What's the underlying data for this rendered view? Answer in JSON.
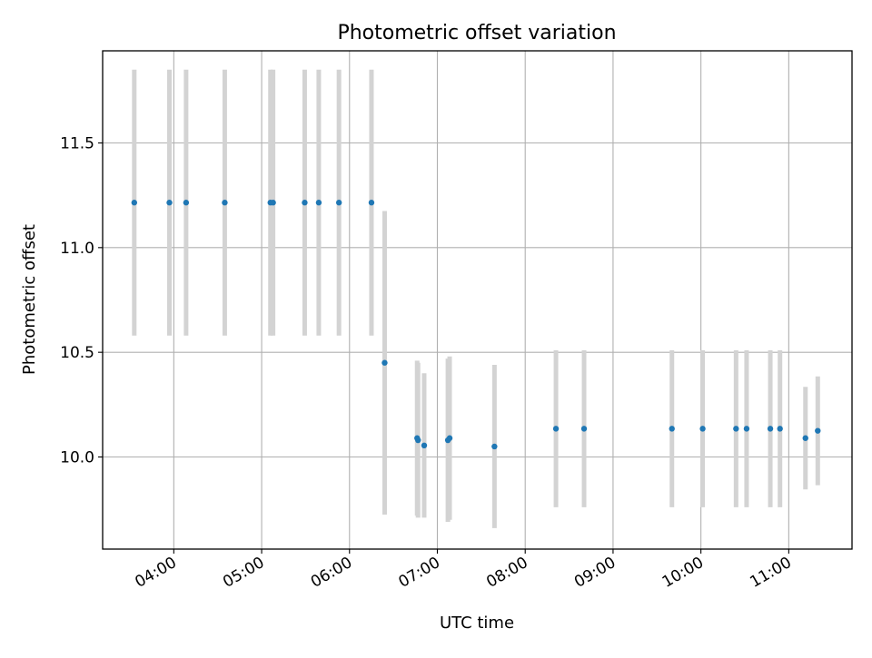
{
  "chart_data": {
    "type": "scatter",
    "title": "Photometric offset variation",
    "xlabel": "UTC time",
    "ylabel": "Photometric offset",
    "x_tick_labels": [
      "04:00",
      "05:00",
      "06:00",
      "07:00",
      "08:00",
      "09:00",
      "10:00",
      "11:00"
    ],
    "y_tick_labels": [
      "10.0",
      "10.5",
      "11.0",
      "11.5"
    ],
    "x_ticks_hours": [
      4,
      5,
      6,
      7,
      8,
      9,
      10,
      11
    ],
    "y_ticks": [
      10.0,
      10.5,
      11.0,
      11.5
    ],
    "xlim_hours": [
      3.19,
      11.72
    ],
    "ylim": [
      9.56,
      11.94
    ],
    "grid": true,
    "colors": {
      "point": "#1f77b4",
      "errorbar": "#d3d3d3",
      "grid": "#b0b0b0"
    },
    "series": [
      {
        "x_hours": [
          3.55,
          3.95,
          4.14,
          4.58,
          5.1,
          5.13,
          5.49,
          5.65,
          5.88,
          6.25,
          6.4,
          6.77,
          6.78,
          6.85,
          7.12,
          7.14,
          7.65,
          8.35,
          8.67,
          9.67,
          10.02,
          10.4,
          10.52,
          10.79,
          10.9,
          11.19,
          11.33
        ],
        "y": [
          11.215,
          11.215,
          11.215,
          11.215,
          11.215,
          11.215,
          11.215,
          11.215,
          11.215,
          11.215,
          10.45,
          10.09,
          10.08,
          10.055,
          10.08,
          10.09,
          10.05,
          10.135,
          10.135,
          10.135,
          10.135,
          10.135,
          10.135,
          10.135,
          10.135,
          10.09,
          10.125
        ],
        "yerr": [
          0.635,
          0.635,
          0.635,
          0.635,
          0.635,
          0.635,
          0.635,
          0.635,
          0.635,
          0.635,
          0.725,
          0.37,
          0.37,
          0.345,
          0.39,
          0.39,
          0.39,
          0.375,
          0.375,
          0.375,
          0.375,
          0.375,
          0.375,
          0.375,
          0.375,
          0.245,
          0.26
        ]
      }
    ]
  }
}
